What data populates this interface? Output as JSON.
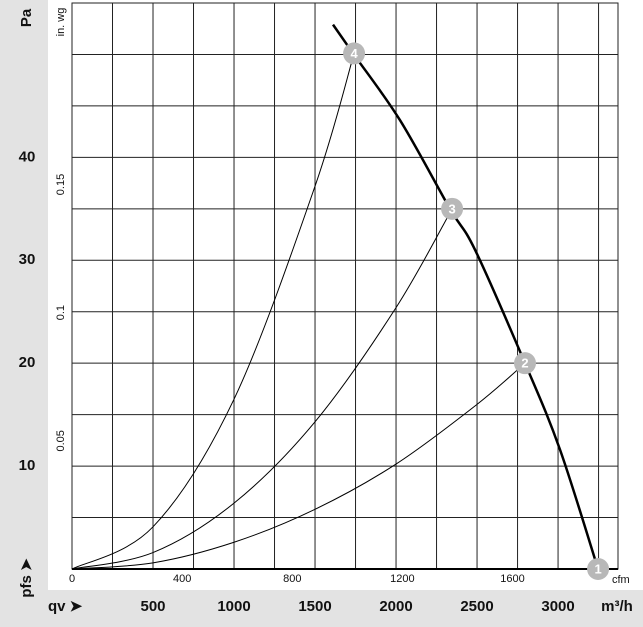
{
  "chart_data": {
    "type": "line",
    "x_axis_symbol": "qv ➤",
    "x_label": "m³/h",
    "x2_label": "cfm",
    "y_axis_symbol": "pfs ➤",
    "y_label": "Pa",
    "y2_label": "in. wg",
    "xlim": [
      0,
      3370
    ],
    "xticks": [
      500,
      1000,
      1500,
      2000,
      2500,
      3000
    ],
    "x2lim": [
      0,
      1983
    ],
    "x2ticks": [
      0,
      400,
      800,
      1200,
      1600
    ],
    "ylim": [
      0,
      55
    ],
    "yticks": [
      10,
      20,
      30,
      40
    ],
    "y2lim": [
      0,
      0.2208
    ],
    "y2ticks": [
      0.05,
      0.1,
      0.15
    ],
    "grid": true,
    "series": [
      {
        "color": "#000000",
        "x": [
          1611,
          1735,
          2025,
          2333,
          2488,
          2796,
          3012,
          3247
        ],
        "values": [
          52.9,
          50.1,
          43.6,
          35.0,
          31.0,
          20.0,
          11.6,
          0
        ]
      },
      {
        "color": "#000000",
        "x": [
          0,
          500,
          1000,
          1500,
          1741
        ],
        "values": [
          0,
          4.1,
          16.5,
          37.2,
          50.1
        ]
      },
      {
        "color": "#000000",
        "x": [
          0,
          500,
          1000,
          1500,
          2000,
          2346
        ],
        "values": [
          0,
          1.6,
          6.4,
          14.3,
          25.4,
          35.0
        ]
      },
      {
        "color": "#000000",
        "x": [
          0,
          500,
          1000,
          1500,
          2000,
          2500,
          2796
        ],
        "values": [
          0,
          0.6,
          2.6,
          5.8,
          10.2,
          16.0,
          20.0
        ]
      }
    ],
    "operating_points": {
      "color": "#b8b8b8",
      "labels": [
        "1",
        "2",
        "3",
        "4"
      ],
      "x": [
        3247,
        2796,
        2346,
        1741
      ],
      "values": [
        0,
        20.0,
        35.0,
        50.1
      ]
    }
  }
}
